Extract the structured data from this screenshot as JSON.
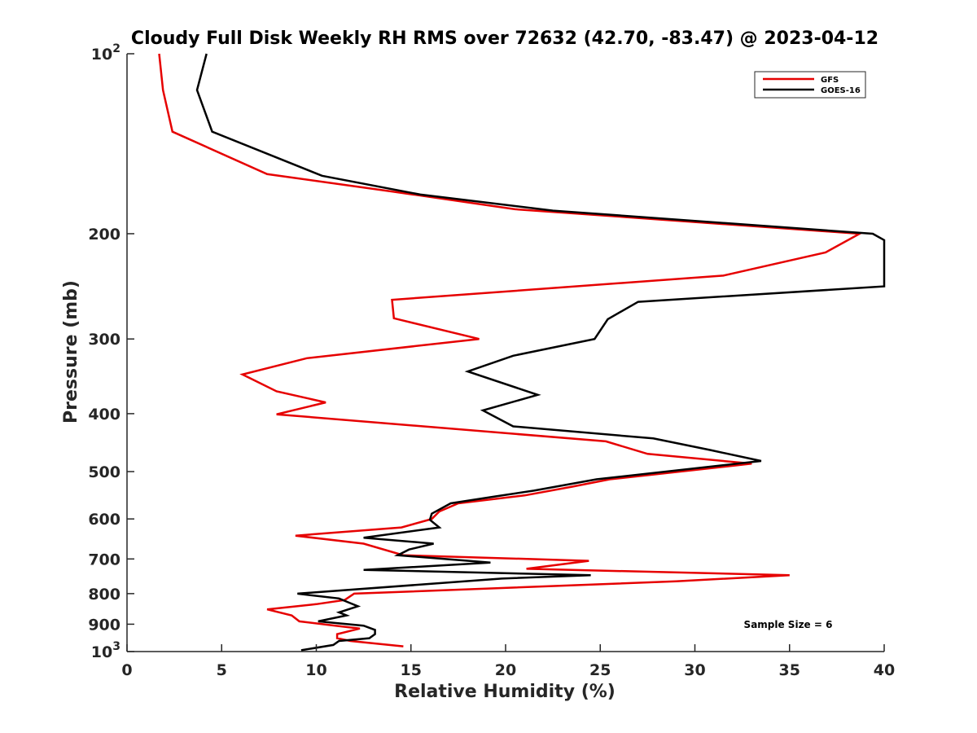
{
  "chart_data": {
    "type": "line",
    "title": "Cloudy Full Disk Weekly RH RMS over 72632 (42.70, -83.47) @ 2023-04-12",
    "xlabel": "Relative Humidity (%)",
    "ylabel": "Pressure (mb)",
    "xlim": [
      0,
      40
    ],
    "ylim": [
      100,
      1000
    ],
    "y_scale": "log",
    "y_reversed": true,
    "grid": false,
    "legend_position": "top-right",
    "x_ticks": [
      "0",
      "5",
      "10",
      "15",
      "20",
      "25",
      "30",
      "35",
      "40"
    ],
    "y_ticks": [
      {
        "value": 100,
        "label": "10",
        "sup": "2"
      },
      {
        "value": 200,
        "label": "200",
        "sup": ""
      },
      {
        "value": 300,
        "label": "300",
        "sup": ""
      },
      {
        "value": 400,
        "label": "400",
        "sup": ""
      },
      {
        "value": 500,
        "label": "500",
        "sup": ""
      },
      {
        "value": 600,
        "label": "600",
        "sup": ""
      },
      {
        "value": 700,
        "label": "700",
        "sup": ""
      },
      {
        "value": 800,
        "label": "800",
        "sup": ""
      },
      {
        "value": 900,
        "label": "900",
        "sup": ""
      },
      {
        "value": 1000,
        "label": "10",
        "sup": "3"
      }
    ],
    "annotation": "Sample Size = 6",
    "series": [
      {
        "name": "GFS",
        "color": "#e60000",
        "points": [
          [
            1.7,
            100
          ],
          [
            1.9,
            115
          ],
          [
            2.4,
            135
          ],
          [
            7.4,
            159
          ],
          [
            14,
            170
          ],
          [
            20.5,
            182
          ],
          [
            38.7,
            200
          ],
          [
            36.9,
            215
          ],
          [
            31.5,
            235
          ],
          [
            14.0,
            258
          ],
          [
            14.1,
            277
          ],
          [
            18.6,
            300
          ],
          [
            9.5,
            323
          ],
          [
            6.1,
            344
          ],
          [
            7.9,
            367
          ],
          [
            10.5,
            383
          ],
          [
            7.9,
            401
          ],
          [
            25.3,
            445
          ],
          [
            27.5,
            467
          ],
          [
            33,
            485
          ],
          [
            25.5,
            515
          ],
          [
            23.5,
            530
          ],
          [
            21,
            548
          ],
          [
            17.5,
            565
          ],
          [
            16.5,
            583
          ],
          [
            16.1,
            600
          ],
          [
            14.5,
            620
          ],
          [
            8.9,
            640
          ],
          [
            12.5,
            660
          ],
          [
            14.6,
            690
          ],
          [
            24.4,
            705
          ],
          [
            21.1,
            727
          ],
          [
            35.0,
            745
          ],
          [
            29.0,
            763
          ],
          [
            12.0,
            800
          ],
          [
            11.5,
            820
          ],
          [
            10,
            833
          ],
          [
            7.4,
            850
          ],
          [
            8.7,
            870
          ],
          [
            9.1,
            890
          ],
          [
            11.0,
            905
          ],
          [
            12.3,
            915
          ],
          [
            11.1,
            935
          ],
          [
            11.1,
            950
          ],
          [
            11.8,
            960
          ],
          [
            14.6,
            980
          ]
        ]
      },
      {
        "name": "GOES-16",
        "color": "#000000",
        "points": [
          [
            4.2,
            100
          ],
          [
            3.7,
            115
          ],
          [
            4.5,
            135
          ],
          [
            10.3,
            160
          ],
          [
            15.5,
            172
          ],
          [
            22.5,
            183
          ],
          [
            39.4,
            200
          ],
          [
            40,
            205
          ],
          [
            40,
            245
          ],
          [
            27.0,
            260
          ],
          [
            25.4,
            278
          ],
          [
            24.7,
            300
          ],
          [
            20.4,
            320
          ],
          [
            18.0,
            340
          ],
          [
            21.7,
            372
          ],
          [
            18.8,
            395
          ],
          [
            20.4,
            420
          ],
          [
            27.8,
            440
          ],
          [
            30.8,
            460
          ],
          [
            33.5,
            480
          ],
          [
            24.8,
            515
          ],
          [
            21.5,
            538
          ],
          [
            19.5,
            550
          ],
          [
            17.1,
            565
          ],
          [
            16.1,
            588
          ],
          [
            16.0,
            602
          ],
          [
            16.5,
            620
          ],
          [
            12.5,
            645
          ],
          [
            16.2,
            660
          ],
          [
            14.9,
            675
          ],
          [
            14.3,
            690
          ],
          [
            19.2,
            710
          ],
          [
            12.5,
            730
          ],
          [
            24.5,
            745
          ],
          [
            19.8,
            755
          ],
          [
            9.0,
            800
          ],
          [
            11.2,
            815
          ],
          [
            11.8,
            830
          ],
          [
            12.2,
            840
          ],
          [
            11.2,
            860
          ],
          [
            11.6,
            870
          ],
          [
            10.1,
            890
          ],
          [
            12.5,
            905
          ],
          [
            13.1,
            920
          ],
          [
            13.1,
            935
          ],
          [
            12.8,
            950
          ],
          [
            11.2,
            960
          ],
          [
            10.9,
            975
          ],
          [
            9.2,
            995
          ]
        ]
      }
    ]
  }
}
